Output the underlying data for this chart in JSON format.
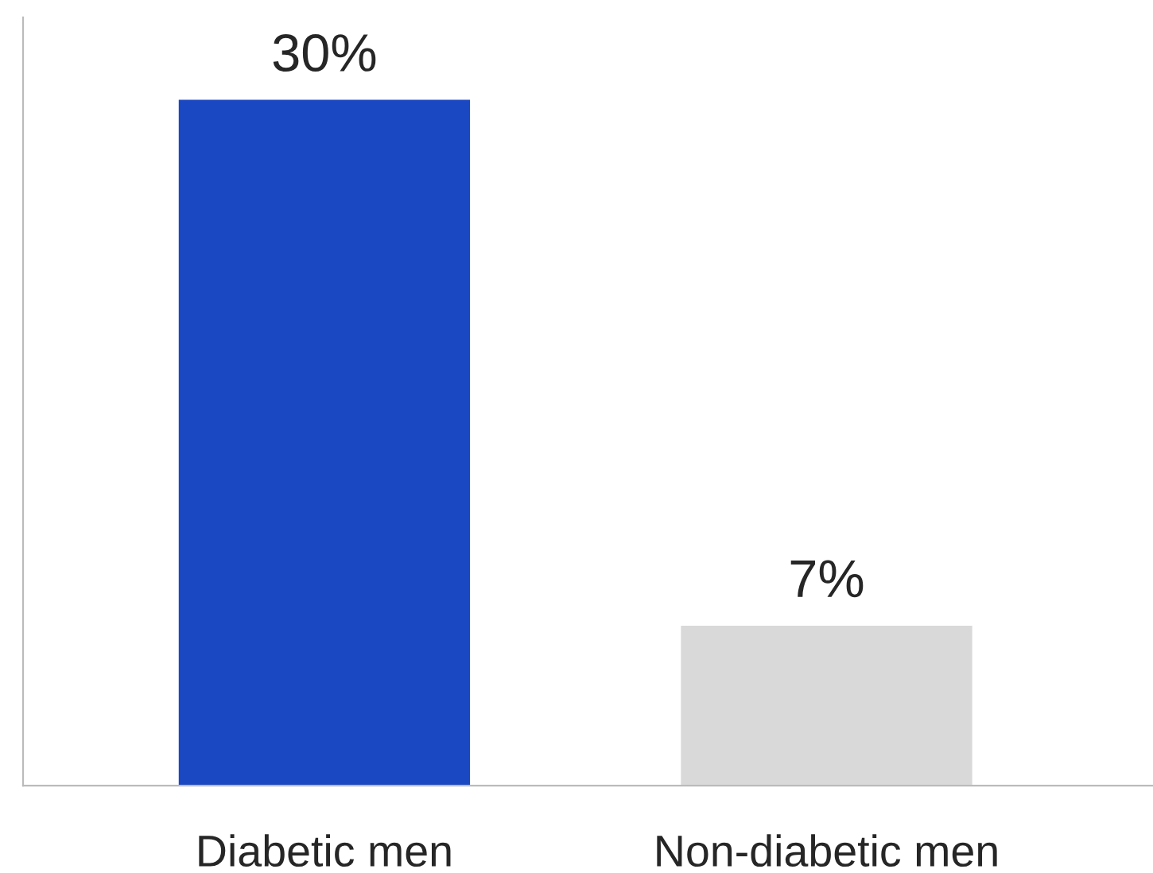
{
  "chart_data": {
    "type": "bar",
    "categories": [
      "Diabetic men",
      "Non-diabetic men"
    ],
    "values": [
      30,
      7
    ],
    "colors": [
      "#1a47c2",
      "#d9d9d9"
    ],
    "value_labels": [
      "30%",
      "7%"
    ],
    "grid": false,
    "legend": false
  }
}
